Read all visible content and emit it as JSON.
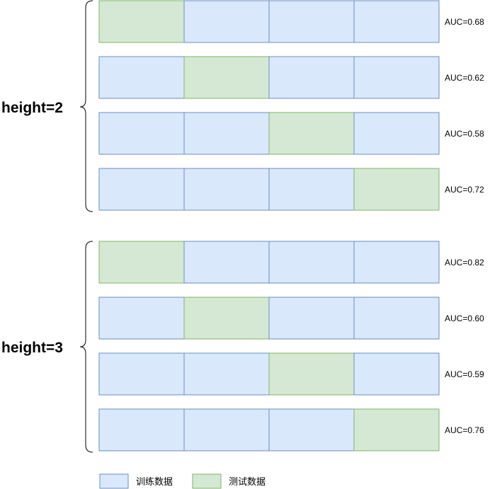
{
  "colors": {
    "train_fill": "#dae8fc",
    "train_stroke": "#6c8ebf",
    "test_fill": "#d5e8d4",
    "test_stroke": "#82b366"
  },
  "groups": [
    {
      "label": "height=2",
      "rows": [
        {
          "test_index": 0,
          "auc": "AUC=0.68"
        },
        {
          "test_index": 1,
          "auc": "AUC=0.62"
        },
        {
          "test_index": 2,
          "auc": "AUC=0.58"
        },
        {
          "test_index": 3,
          "auc": "AUC=0.72"
        }
      ]
    },
    {
      "label": "height=3",
      "rows": [
        {
          "test_index": 0,
          "auc": "AUC=0.82"
        },
        {
          "test_index": 1,
          "auc": "AUC=0.60"
        },
        {
          "test_index": 2,
          "auc": "AUC=0.59"
        },
        {
          "test_index": 3,
          "auc": "AUC=0.76"
        }
      ]
    }
  ],
  "legend": {
    "train_label": "训练数据",
    "test_label": "测试数据"
  }
}
